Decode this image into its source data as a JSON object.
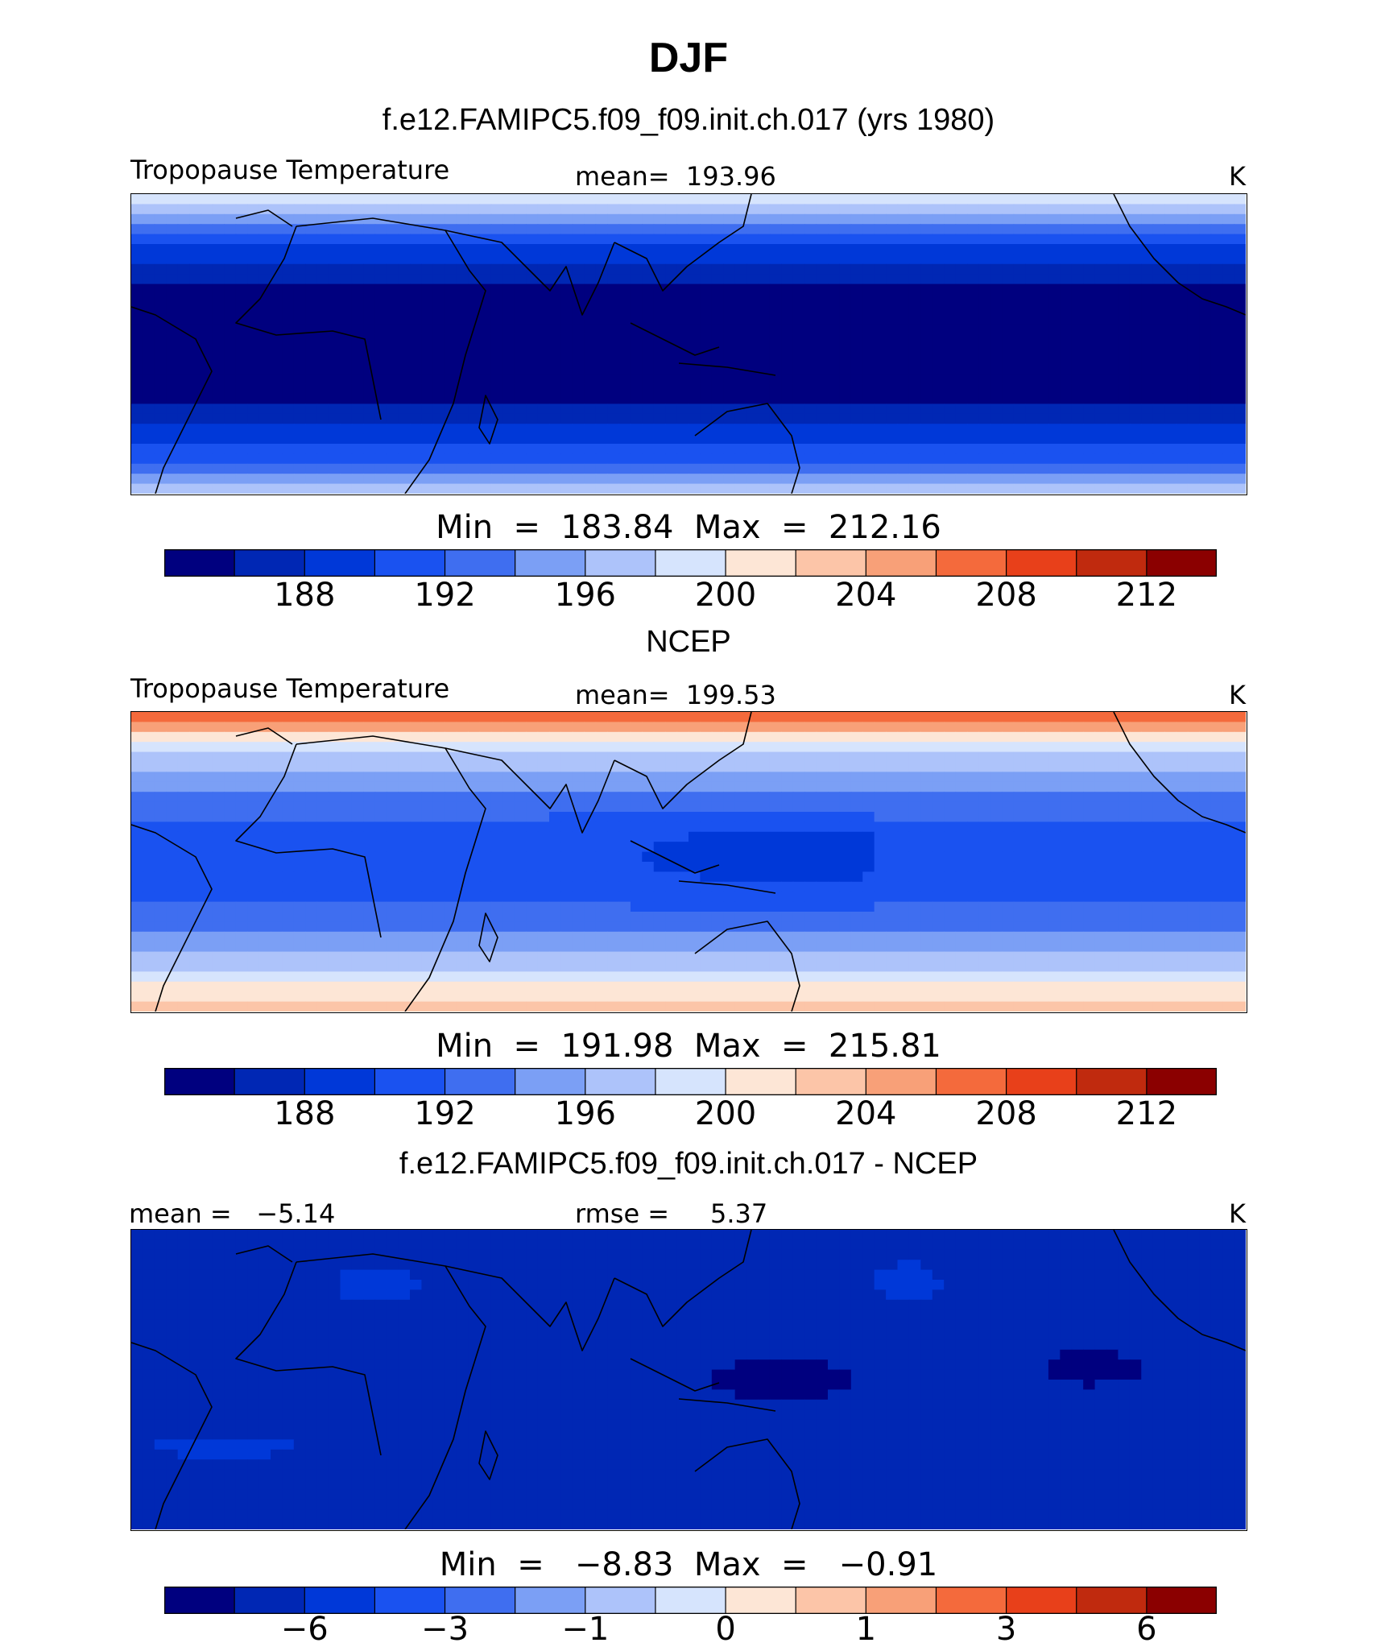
{
  "title": "DJF",
  "chart_data": [
    {
      "type": "heatmap",
      "subtitle": "f.e12.FAMIPC5.f09_f09.init.ch.017 (yrs 1980)",
      "variable": "Tropopause Temperature",
      "left_label": "Tropopause Temperature",
      "center_label": "mean=  193.96",
      "units": "K",
      "mean": 193.96,
      "min": 183.84,
      "max": 212.16,
      "minmax_label": "Min  =  183.84  Max  =  212.16",
      "colorbar_ticks": [
        "188",
        "192",
        "196",
        "200",
        "204",
        "208",
        "212"
      ],
      "colorbar_levels": [
        186,
        188,
        190,
        192,
        194,
        196,
        198,
        200,
        202,
        204,
        206,
        208,
        210,
        212,
        214
      ],
      "field": "model"
    },
    {
      "type": "heatmap",
      "subtitle": "NCEP",
      "variable": "Tropopause Temperature",
      "left_label": "Tropopause Temperature",
      "center_label": "mean=  199.53",
      "units": "K",
      "mean": 199.53,
      "min": 191.98,
      "max": 215.81,
      "minmax_label": "Min  =  191.98  Max  =  215.81",
      "colorbar_ticks": [
        "188",
        "192",
        "196",
        "200",
        "204",
        "208",
        "212"
      ],
      "colorbar_levels": [
        186,
        188,
        190,
        192,
        194,
        196,
        198,
        200,
        202,
        204,
        206,
        208,
        210,
        212,
        214
      ],
      "field": "obs"
    },
    {
      "type": "heatmap",
      "subtitle": "f.e12.FAMIPC5.f09_f09.init.ch.017 - NCEP",
      "left_label": "mean =   −5.14",
      "center_label": "rmse =     5.37",
      "units": "K",
      "mean": -5.14,
      "rmse": 5.37,
      "min": -8.83,
      "max": -0.91,
      "minmax_label": "Min  =   −8.83  Max  =   −0.91",
      "colorbar_ticks": [
        "−6",
        "−3",
        "−1",
        "0",
        "1",
        "3",
        "6"
      ],
      "colorbar_levels": [
        -8,
        -6,
        -4,
        -3,
        -2,
        -1,
        -0.5,
        0,
        0.5,
        1,
        2,
        3,
        4,
        6,
        8
      ],
      "field": "diff"
    }
  ],
  "colors": {
    "palette": [
      "#00007f",
      "#0027b4",
      "#0038d8",
      "#1a52f0",
      "#3f6ef0",
      "#7b9ff5",
      "#adc3fa",
      "#d6e4fd",
      "#fde6d6",
      "#fcc5a8",
      "#f8a078",
      "#f46a3c",
      "#e8401a",
      "#c02a0e",
      "#8b0000"
    ],
    "coastline": "#000000"
  }
}
